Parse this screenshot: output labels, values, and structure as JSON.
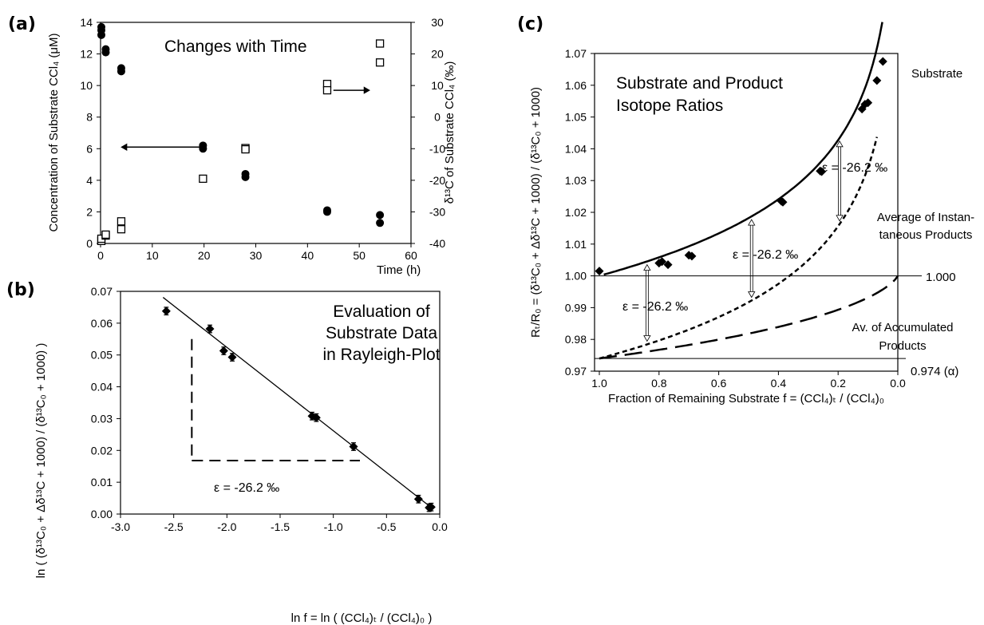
{
  "panels": {
    "a": {
      "tag": "(a)",
      "title": "Changes with Time",
      "xlabel": "Time (h)",
      "ylabel_left": "Concentration of Substrate CCl₄ (μM)",
      "ylabel_right": "δ¹³C of Substrate CCl₄ (‰)"
    },
    "b": {
      "tag": "(b)",
      "title_lines": [
        "Evaluation of",
        "Substrate Data",
        "in Rayleigh-Plot"
      ],
      "epsilon": "ε = -26.2 ‰",
      "xlabel": "ln f = ln ( (CCl₄)ₜ / (CCl₄)₀ )",
      "ylabel": "ln ( (δ¹³C₀ + Δδ¹³C + 1000) / (δ¹³C₀ + 1000) )"
    },
    "c": {
      "tag": "(c)",
      "title_lines": [
        "Substrate and Product",
        "Isotope Ratios"
      ],
      "label_substrate": "Substrate",
      "label_inst": [
        "Average of Instan-",
        "taneous Products"
      ],
      "label_accum": [
        "Av. of Accumulated",
        "Products"
      ],
      "ref_1000": "1.000",
      "ref_alpha": "0.974 (α)",
      "eps_labels": [
        "ε = -26.2 ‰",
        "ε = -26.2 ‰",
        "ε = -26.2 ‰"
      ],
      "xlabel": "Fraction of Remaining Substrate f =  (CCl₄)ₜ / (CCl₄)₀",
      "ylabel": "Rₜ/R₀ = (δ¹³C₀ + Δδ¹³C + 1000) / (δ¹³C₀ + 1000)"
    }
  },
  "chart_data": [
    {
      "id": "a",
      "type": "scatter",
      "title": "Changes with Time",
      "xlabel": "Time (h)",
      "ylabel": "Concentration of Substrate CCl₄ (μM)",
      "y2label": "δ¹³C of Substrate CCl₄ (‰)",
      "xlim": [
        0,
        60
      ],
      "xticks": [
        "0",
        "10",
        "20",
        "30",
        "40",
        "50",
        "60"
      ],
      "ylim": [
        0,
        14
      ],
      "yticks": [
        "0",
        "2",
        "4",
        "6",
        "8",
        "10",
        "12",
        "14"
      ],
      "y2lim": [
        -40,
        30
      ],
      "y2ticks": [
        "-40",
        "-30",
        "-20",
        "-10",
        "0",
        "10",
        "20",
        "30"
      ],
      "series": [
        {
          "axis": "left",
          "marker": "filled-circle",
          "x": [
            0,
            0,
            0,
            1,
            1,
            4,
            4,
            19.8,
            19.8,
            28,
            28,
            43.8,
            43.8,
            54,
            54
          ],
          "y": [
            13.7,
            13.5,
            13.2,
            12.3,
            12.1,
            11.1,
            10.9,
            6.2,
            6.0,
            4.4,
            4.2,
            2.1,
            2.0,
            1.8,
            1.3
          ]
        },
        {
          "axis": "right",
          "marker": "open-square",
          "x": [
            0,
            0,
            1,
            1,
            4,
            4,
            19.8,
            28,
            28,
            43.8,
            43.8,
            54,
            54
          ],
          "y": [
            -39.2,
            -38.5,
            -37.5,
            -37.2,
            -33,
            -35.5,
            -19.5,
            -9.8,
            -10.2,
            10.5,
            8.5,
            23.3,
            17.3
          ]
        }
      ],
      "annotations": [
        {
          "text": "←",
          "meaning": "points to left axis",
          "x": [
            20,
            4
          ],
          "y": 6.1
        },
        {
          "text": "→",
          "meaning": "points to right axis",
          "x": [
            45,
            52
          ],
          "y": 8.5
        }
      ]
    },
    {
      "id": "b",
      "type": "scatter",
      "title": "Evaluation of Substrate Data in Rayleigh-Plot",
      "xlim": [
        -3.0,
        0.0
      ],
      "xticks": [
        "-3.0",
        "-2.5",
        "-2.0",
        "-1.5",
        "-1.0",
        "-0.5",
        "0.0"
      ],
      "ylim": [
        0.0,
        0.07
      ],
      "yticks": [
        "0.00",
        "0.01",
        "0.02",
        "0.03",
        "0.04",
        "0.05",
        "0.06",
        "0.07"
      ],
      "x": [
        -2.57,
        -2.16,
        -2.03,
        -1.95,
        -1.2,
        -1.16,
        -0.81,
        -0.2,
        -0.1,
        -0.08
      ],
      "y": [
        0.0638,
        0.0582,
        0.0513,
        0.0493,
        0.0308,
        0.0303,
        0.0212,
        0.0047,
        0.002,
        0.0022
      ],
      "yerr": 0.0012,
      "fit": {
        "x": [
          -2.6,
          -0.07
        ],
        "y": [
          0.0681,
          0.0018
        ]
      },
      "slope_triangle": {
        "x": [
          -2.33,
          -0.75
        ],
        "y": [
          0.0168,
          0.055
        ]
      },
      "epsilon": "ε = -26.2 ‰"
    },
    {
      "id": "c",
      "type": "line",
      "title": "Substrate and Product Isotope Ratios",
      "xlim": [
        1.0,
        0.0
      ],
      "xticks": [
        "1.0",
        "0.8",
        "0.6",
        "0.4",
        "0.2",
        "0.0"
      ],
      "ylim": [
        0.97,
        1.07
      ],
      "yticks": [
        "0.97",
        "0.98",
        "0.99",
        "1.00",
        "1.01",
        "1.02",
        "1.03",
        "1.04",
        "1.05",
        "1.06",
        "1.07"
      ],
      "alpha": 0.974,
      "points": {
        "x": [
          1.0,
          0.8,
          0.79,
          0.77,
          0.7,
          0.69,
          0.39,
          0.385,
          0.26,
          0.255,
          0.12,
          0.11,
          0.1,
          0.07,
          0.05
        ],
        "y": [
          1.0015,
          1.004,
          1.0045,
          1.0035,
          1.0065,
          1.0062,
          1.0235,
          1.0232,
          1.033,
          1.0328,
          1.0525,
          1.054,
          1.0545,
          1.0615,
          1.0675
        ]
      },
      "series": [
        {
          "name": "Substrate",
          "style": "solid",
          "equation": "R = f^(α-1)"
        },
        {
          "name": "Average of Instantaneous Products",
          "style": "short-dash",
          "equation": "R = α·f^(α-1)"
        },
        {
          "name": "Av. of Accumulated Products",
          "style": "long-dash",
          "equation": "R = (1-f^α)/(1-f)"
        }
      ],
      "reference_lines": [
        {
          "y": 1.0,
          "label": "1.000"
        },
        {
          "y": 0.974,
          "label": "0.974 (α)"
        }
      ]
    }
  ]
}
